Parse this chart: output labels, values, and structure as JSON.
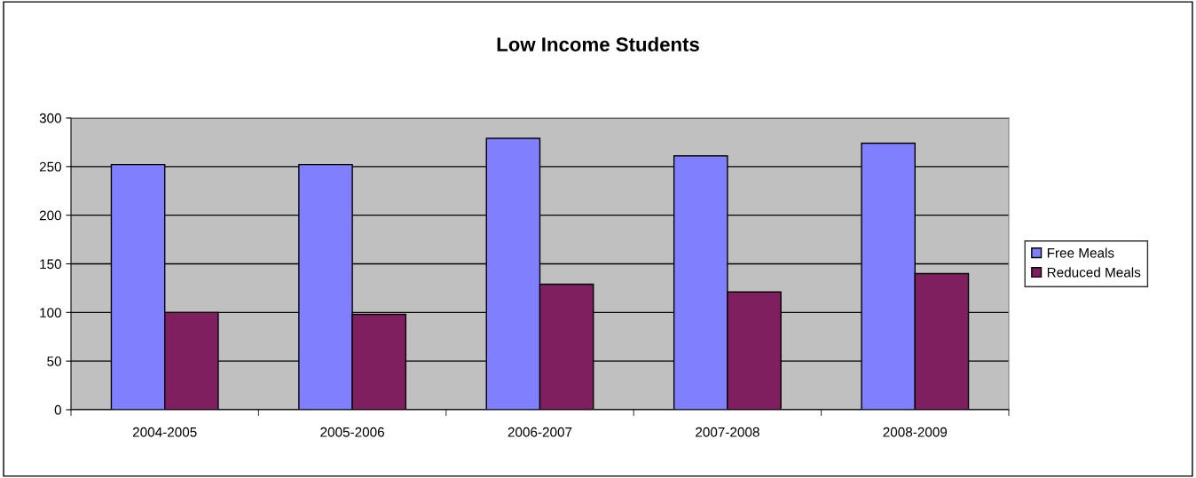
{
  "chart_data": {
    "type": "bar",
    "title": "Low Income Students",
    "categories": [
      "2004-2005",
      "2005-2006",
      "2006-2007",
      "2007-2008",
      "2008-2009"
    ],
    "series": [
      {
        "name": "Free Meals",
        "color": "#8080ff",
        "values": [
          252,
          252,
          279,
          261,
          274
        ]
      },
      {
        "name": "Reduced Meals",
        "color": "#7f1f5f",
        "values": [
          100,
          98,
          129,
          121,
          140
        ]
      }
    ],
    "ylim": [
      0,
      300
    ],
    "yticks": [
      0,
      50,
      100,
      150,
      200,
      250,
      300
    ],
    "grid": "y",
    "legend": "right"
  }
}
